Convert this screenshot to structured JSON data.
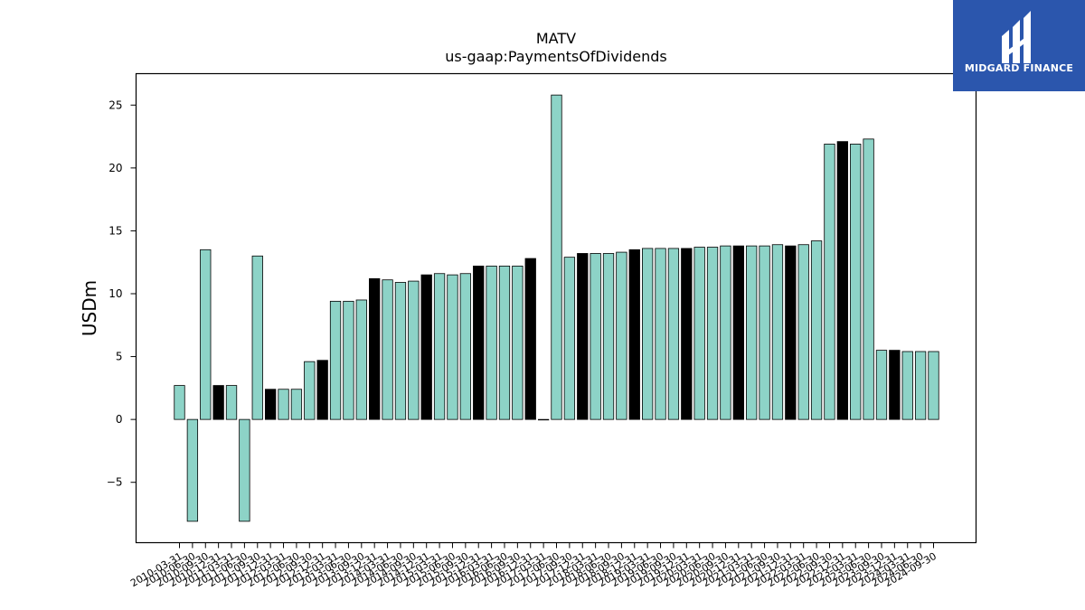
{
  "logo": {
    "text": "MIDGARD FINANCE",
    "background": "#2b56ad"
  },
  "chart_data": {
    "type": "bar",
    "title": "MATV",
    "subtitle": "us-gaap:PaymentsOfDividends",
    "ylabel": "USDm",
    "xlabel": "",
    "ylim": [
      -9.8,
      27.5
    ],
    "yticks": [
      -5,
      0,
      5,
      10,
      15,
      20,
      25
    ],
    "ytick_labels": [
      "−5",
      "0",
      "5",
      "10",
      "15",
      "20",
      "25"
    ],
    "grid": false,
    "colors": {
      "normal": "#8dd3c7",
      "highlight": "#000000",
      "edge": "#000000"
    },
    "categories": [
      "2010-03-31",
      "2010-06-30",
      "2010-09-30",
      "2010-12-31",
      "2011-03-31",
      "2011-06-30",
      "2011-09-30",
      "2011-12-31",
      "2012-03-31",
      "2012-06-30",
      "2012-09-30",
      "2012-12-31",
      "2013-03-31",
      "2013-06-30",
      "2013-09-30",
      "2013-12-31",
      "2014-03-31",
      "2014-06-30",
      "2014-09-30",
      "2014-12-31",
      "2015-03-31",
      "2015-06-30",
      "2015-09-30",
      "2015-12-31",
      "2016-03-31",
      "2016-06-30",
      "2016-09-30",
      "2016-12-31",
      "2017-03-31",
      "2017-06-30",
      "2017-09-30",
      "2017-12-31",
      "2018-03-31",
      "2018-06-30",
      "2018-09-30",
      "2018-12-31",
      "2019-03-31",
      "2019-06-30",
      "2019-09-30",
      "2019-12-31",
      "2020-03-31",
      "2020-06-30",
      "2020-09-30",
      "2020-12-31",
      "2021-03-31",
      "2021-06-30",
      "2021-09-30",
      "2021-12-31",
      "2022-03-31",
      "2022-06-30",
      "2022-09-30",
      "2022-12-31",
      "2023-03-31",
      "2023-06-30",
      "2023-09-30",
      "2023-12-31",
      "2024-03-31",
      "2024-06-30",
      "2024-09-30"
    ],
    "values": [
      2.7,
      -8.1,
      13.5,
      2.7,
      2.7,
      -8.1,
      13.0,
      2.4,
      2.4,
      2.4,
      4.6,
      4.7,
      9.4,
      9.4,
      9.5,
      11.2,
      11.1,
      10.9,
      11.0,
      11.5,
      11.6,
      11.5,
      11.6,
      12.2,
      12.2,
      12.2,
      12.2,
      12.8,
      0.0,
      25.8,
      12.9,
      13.2,
      13.2,
      13.2,
      13.3,
      13.5,
      13.6,
      13.6,
      13.6,
      13.6,
      13.7,
      13.7,
      13.8,
      13.8,
      13.8,
      13.8,
      13.9,
      13.8,
      13.9,
      14.2,
      21.9,
      22.1,
      21.9,
      22.3,
      5.5,
      5.5,
      5.4,
      5.4,
      5.4
    ],
    "highlighted": [
      false,
      false,
      false,
      true,
      false,
      false,
      false,
      true,
      false,
      false,
      false,
      true,
      false,
      false,
      false,
      true,
      false,
      false,
      false,
      true,
      false,
      false,
      false,
      true,
      false,
      false,
      false,
      true,
      false,
      false,
      false,
      true,
      false,
      false,
      false,
      true,
      false,
      false,
      false,
      true,
      false,
      false,
      false,
      true,
      false,
      false,
      false,
      true,
      false,
      false,
      false,
      true,
      false,
      false,
      false,
      true,
      false,
      false,
      false
    ]
  }
}
